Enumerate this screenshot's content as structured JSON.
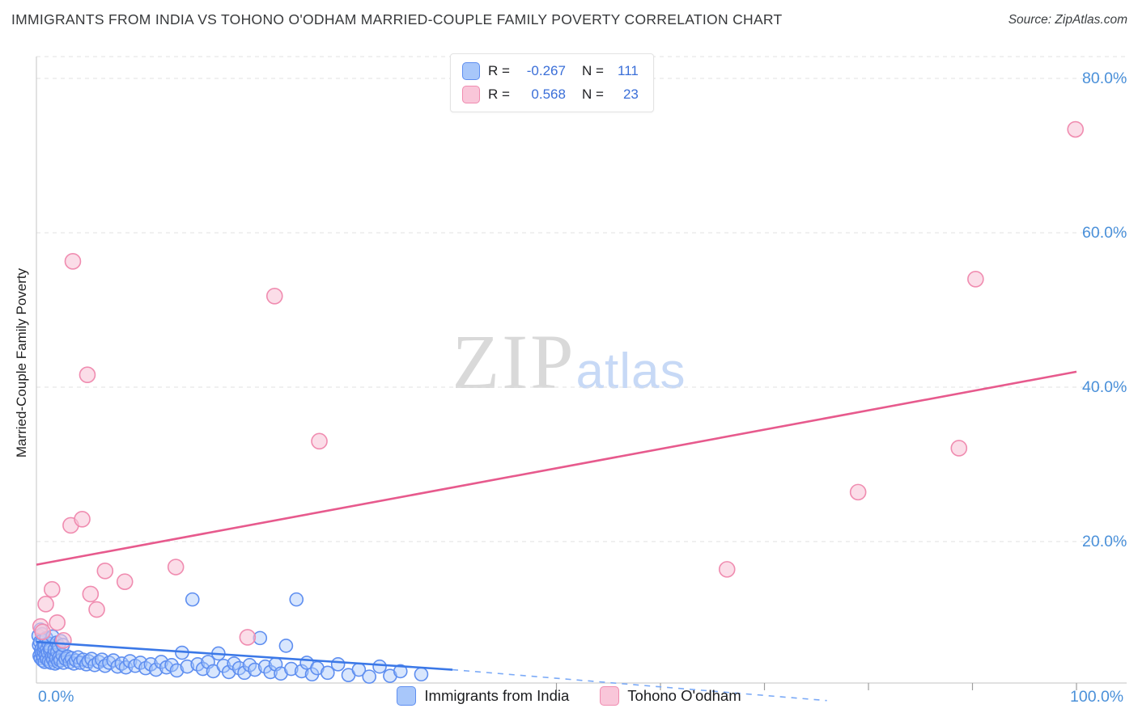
{
  "header": {
    "title": "IMMIGRANTS FROM INDIA VS TOHONO O'ODHAM MARRIED-COUPLE FAMILY POVERTY CORRELATION CHART",
    "source": "Source: ZipAtlas.com"
  },
  "watermark": {
    "zip": "ZIP",
    "atlas": "atlas"
  },
  "y_axis": {
    "label": "Married-Couple Family Poverty",
    "ticks": [
      "80.0%",
      "60.0%",
      "40.0%",
      "20.0%"
    ]
  },
  "x_axis": {
    "min": "0.0%",
    "max": "100.0%"
  },
  "stats_legend": {
    "rows": [
      {
        "r_label": "R =",
        "r_value": "-0.267",
        "n_label": "N =",
        "n_value": "111"
      },
      {
        "r_label": "R =",
        "r_value": "0.568",
        "n_label": "N =",
        "n_value": "23"
      }
    ]
  },
  "series_legend": [
    {
      "label": "Immigrants from India"
    },
    {
      "label": "Tohono O'odham"
    }
  ],
  "colors": {
    "blue_fill": "rgba(168,199,250,0.45)",
    "blue_stroke": "#5e8ef0",
    "pink_fill": "rgba(249,198,217,0.6)",
    "pink_stroke": "#f08cb0",
    "blue_line": "#3b78e7",
    "blue_dash": "#7baaf7",
    "pink_line": "#e75a8d",
    "grid": "#e0e0e0",
    "axis": "#cfcfcf",
    "tick": "#9e9e9e",
    "axis_label_blue": "#4a90d9"
  },
  "chart_data": {
    "type": "scatter",
    "title": "IMMIGRANTS FROM INDIA VS TOHONO O'ODHAM MARRIED-COUPLE FAMILY POVERTY CORRELATION CHART",
    "xlabel": "Immigrants from India (%)",
    "ylabel": "Married-Couple Family Poverty (%)",
    "xlim": [
      0,
      104
    ],
    "ylim": [
      0,
      83
    ],
    "grid": "horizontal-dashed",
    "legend_position": "bottom",
    "y_gridlines": [
      20,
      40,
      60,
      80
    ],
    "x_ticks": [
      50,
      60,
      70,
      80,
      90,
      100
    ],
    "series": [
      {
        "name": "Immigrants from India",
        "r": -0.267,
        "n": 111,
        "points": [
          [
            0.2,
            7.8
          ],
          [
            0.25,
            6.6
          ],
          [
            0.3,
            5.2
          ],
          [
            0.35,
            7.0
          ],
          [
            0.4,
            8.6
          ],
          [
            0.4,
            4.9
          ],
          [
            0.45,
            5.9
          ],
          [
            0.5,
            6.1
          ],
          [
            0.5,
            5.5
          ],
          [
            0.55,
            8.0
          ],
          [
            0.6,
            7.2
          ],
          [
            0.6,
            4.6
          ],
          [
            0.65,
            5.1
          ],
          [
            0.7,
            5.8
          ],
          [
            0.75,
            6.3
          ],
          [
            0.8,
            6.6
          ],
          [
            0.8,
            4.4
          ],
          [
            0.9,
            5.3
          ],
          [
            0.95,
            7.5
          ],
          [
            1.0,
            6.0
          ],
          [
            1.0,
            4.8
          ],
          [
            1.1,
            5.6
          ],
          [
            1.15,
            6.8
          ],
          [
            1.2,
            4.5
          ],
          [
            1.3,
            5.9
          ],
          [
            1.35,
            6.2
          ],
          [
            1.4,
            4.3
          ],
          [
            1.5,
            5.1
          ],
          [
            1.55,
            7.7
          ],
          [
            1.6,
            4.7
          ],
          [
            1.7,
            5.4
          ],
          [
            1.75,
            6.0
          ],
          [
            1.8,
            4.2
          ],
          [
            1.9,
            4.9
          ],
          [
            1.95,
            6.9
          ],
          [
            2.0,
            5.7
          ],
          [
            2.1,
            4.4
          ],
          [
            2.15,
            6.4
          ],
          [
            2.2,
            5.0
          ],
          [
            2.3,
            4.6
          ],
          [
            2.35,
            7.1
          ],
          [
            2.5,
            5.3
          ],
          [
            2.55,
            6.6
          ],
          [
            2.6,
            4.3
          ],
          [
            2.8,
            4.8
          ],
          [
            3.0,
            5.1
          ],
          [
            3.2,
            4.4
          ],
          [
            3.4,
            4.9
          ],
          [
            3.6,
            4.2
          ],
          [
            3.8,
            4.6
          ],
          [
            4.0,
            5.0
          ],
          [
            4.2,
            4.3
          ],
          [
            4.5,
            4.7
          ],
          [
            4.8,
            4.1
          ],
          [
            5.0,
            4.5
          ],
          [
            5.3,
            4.8
          ],
          [
            5.6,
            4.0
          ],
          [
            6.0,
            4.4
          ],
          [
            6.3,
            4.7
          ],
          [
            6.6,
            3.9
          ],
          [
            7.0,
            4.3
          ],
          [
            7.4,
            4.6
          ],
          [
            7.8,
            3.8
          ],
          [
            8.2,
            4.2
          ],
          [
            8.6,
            3.7
          ],
          [
            9.0,
            4.5
          ],
          [
            9.5,
            3.9
          ],
          [
            10.0,
            4.3
          ],
          [
            10.5,
            3.6
          ],
          [
            11.0,
            4.1
          ],
          [
            11.5,
            3.4
          ],
          [
            12.0,
            4.4
          ],
          [
            12.5,
            3.7
          ],
          [
            13.0,
            4.0
          ],
          [
            13.5,
            3.3
          ],
          [
            14.0,
            5.6
          ],
          [
            14.5,
            3.8
          ],
          [
            15.0,
            12.5
          ],
          [
            15.5,
            4.1
          ],
          [
            16.0,
            3.5
          ],
          [
            16.5,
            4.4
          ],
          [
            17.0,
            3.2
          ],
          [
            17.5,
            5.5
          ],
          [
            18.0,
            3.9
          ],
          [
            18.5,
            3.1
          ],
          [
            19.0,
            4.2
          ],
          [
            19.5,
            3.6
          ],
          [
            20.0,
            3.0
          ],
          [
            20.5,
            4.0
          ],
          [
            21.0,
            3.4
          ],
          [
            21.5,
            7.5
          ],
          [
            22.0,
            3.8
          ],
          [
            22.5,
            3.1
          ],
          [
            23.0,
            4.1
          ],
          [
            23.5,
            2.9
          ],
          [
            24.0,
            6.5
          ],
          [
            24.5,
            3.5
          ],
          [
            25.0,
            12.5
          ],
          [
            25.5,
            3.2
          ],
          [
            26.0,
            4.3
          ],
          [
            26.5,
            2.8
          ],
          [
            27.0,
            3.6
          ],
          [
            28.0,
            3.0
          ],
          [
            29.0,
            4.1
          ],
          [
            30.0,
            2.7
          ],
          [
            31.0,
            3.4
          ],
          [
            32.0,
            2.5
          ],
          [
            33.0,
            3.8
          ],
          [
            34.0,
            2.6
          ],
          [
            35.0,
            3.2
          ],
          [
            37.0,
            2.8
          ]
        ]
      },
      {
        "name": "Tohono O'odham",
        "r": 0.568,
        "n": 23,
        "points": [
          [
            0.4,
            9.0
          ],
          [
            0.6,
            8.3
          ],
          [
            0.9,
            11.9
          ],
          [
            1.5,
            13.8
          ],
          [
            2.0,
            9.5
          ],
          [
            2.6,
            7.2
          ],
          [
            3.3,
            22.1
          ],
          [
            3.5,
            56.3
          ],
          [
            4.4,
            22.9
          ],
          [
            4.9,
            41.6
          ],
          [
            5.2,
            13.2
          ],
          [
            5.8,
            11.2
          ],
          [
            6.6,
            16.2
          ],
          [
            8.5,
            14.8
          ],
          [
            13.4,
            16.7
          ],
          [
            20.3,
            7.6
          ],
          [
            22.9,
            51.8
          ],
          [
            27.2,
            33.0
          ],
          [
            66.4,
            16.4
          ],
          [
            79.0,
            26.4
          ],
          [
            88.7,
            32.1
          ],
          [
            90.3,
            54.0
          ],
          [
            99.9,
            73.4
          ]
        ]
      }
    ],
    "trend_lines": [
      {
        "name": "Immigrants from India trend",
        "style": "solid",
        "color": "blue_line",
        "x1": 0,
        "y1": 7.0,
        "x2": 40,
        "y2": 3.4,
        "width": 2.6
      },
      {
        "name": "Immigrants from India trend projection",
        "style": "dashed",
        "color": "blue_dash",
        "x1": 40,
        "y1": 3.4,
        "x2": 76,
        "y2": -0.6,
        "width": 1.6
      },
      {
        "name": "Tohono O'odham trend",
        "style": "solid",
        "color": "pink_line",
        "x1": 0,
        "y1": 17.0,
        "x2": 100,
        "y2": 42.0,
        "width": 2.6
      }
    ]
  }
}
